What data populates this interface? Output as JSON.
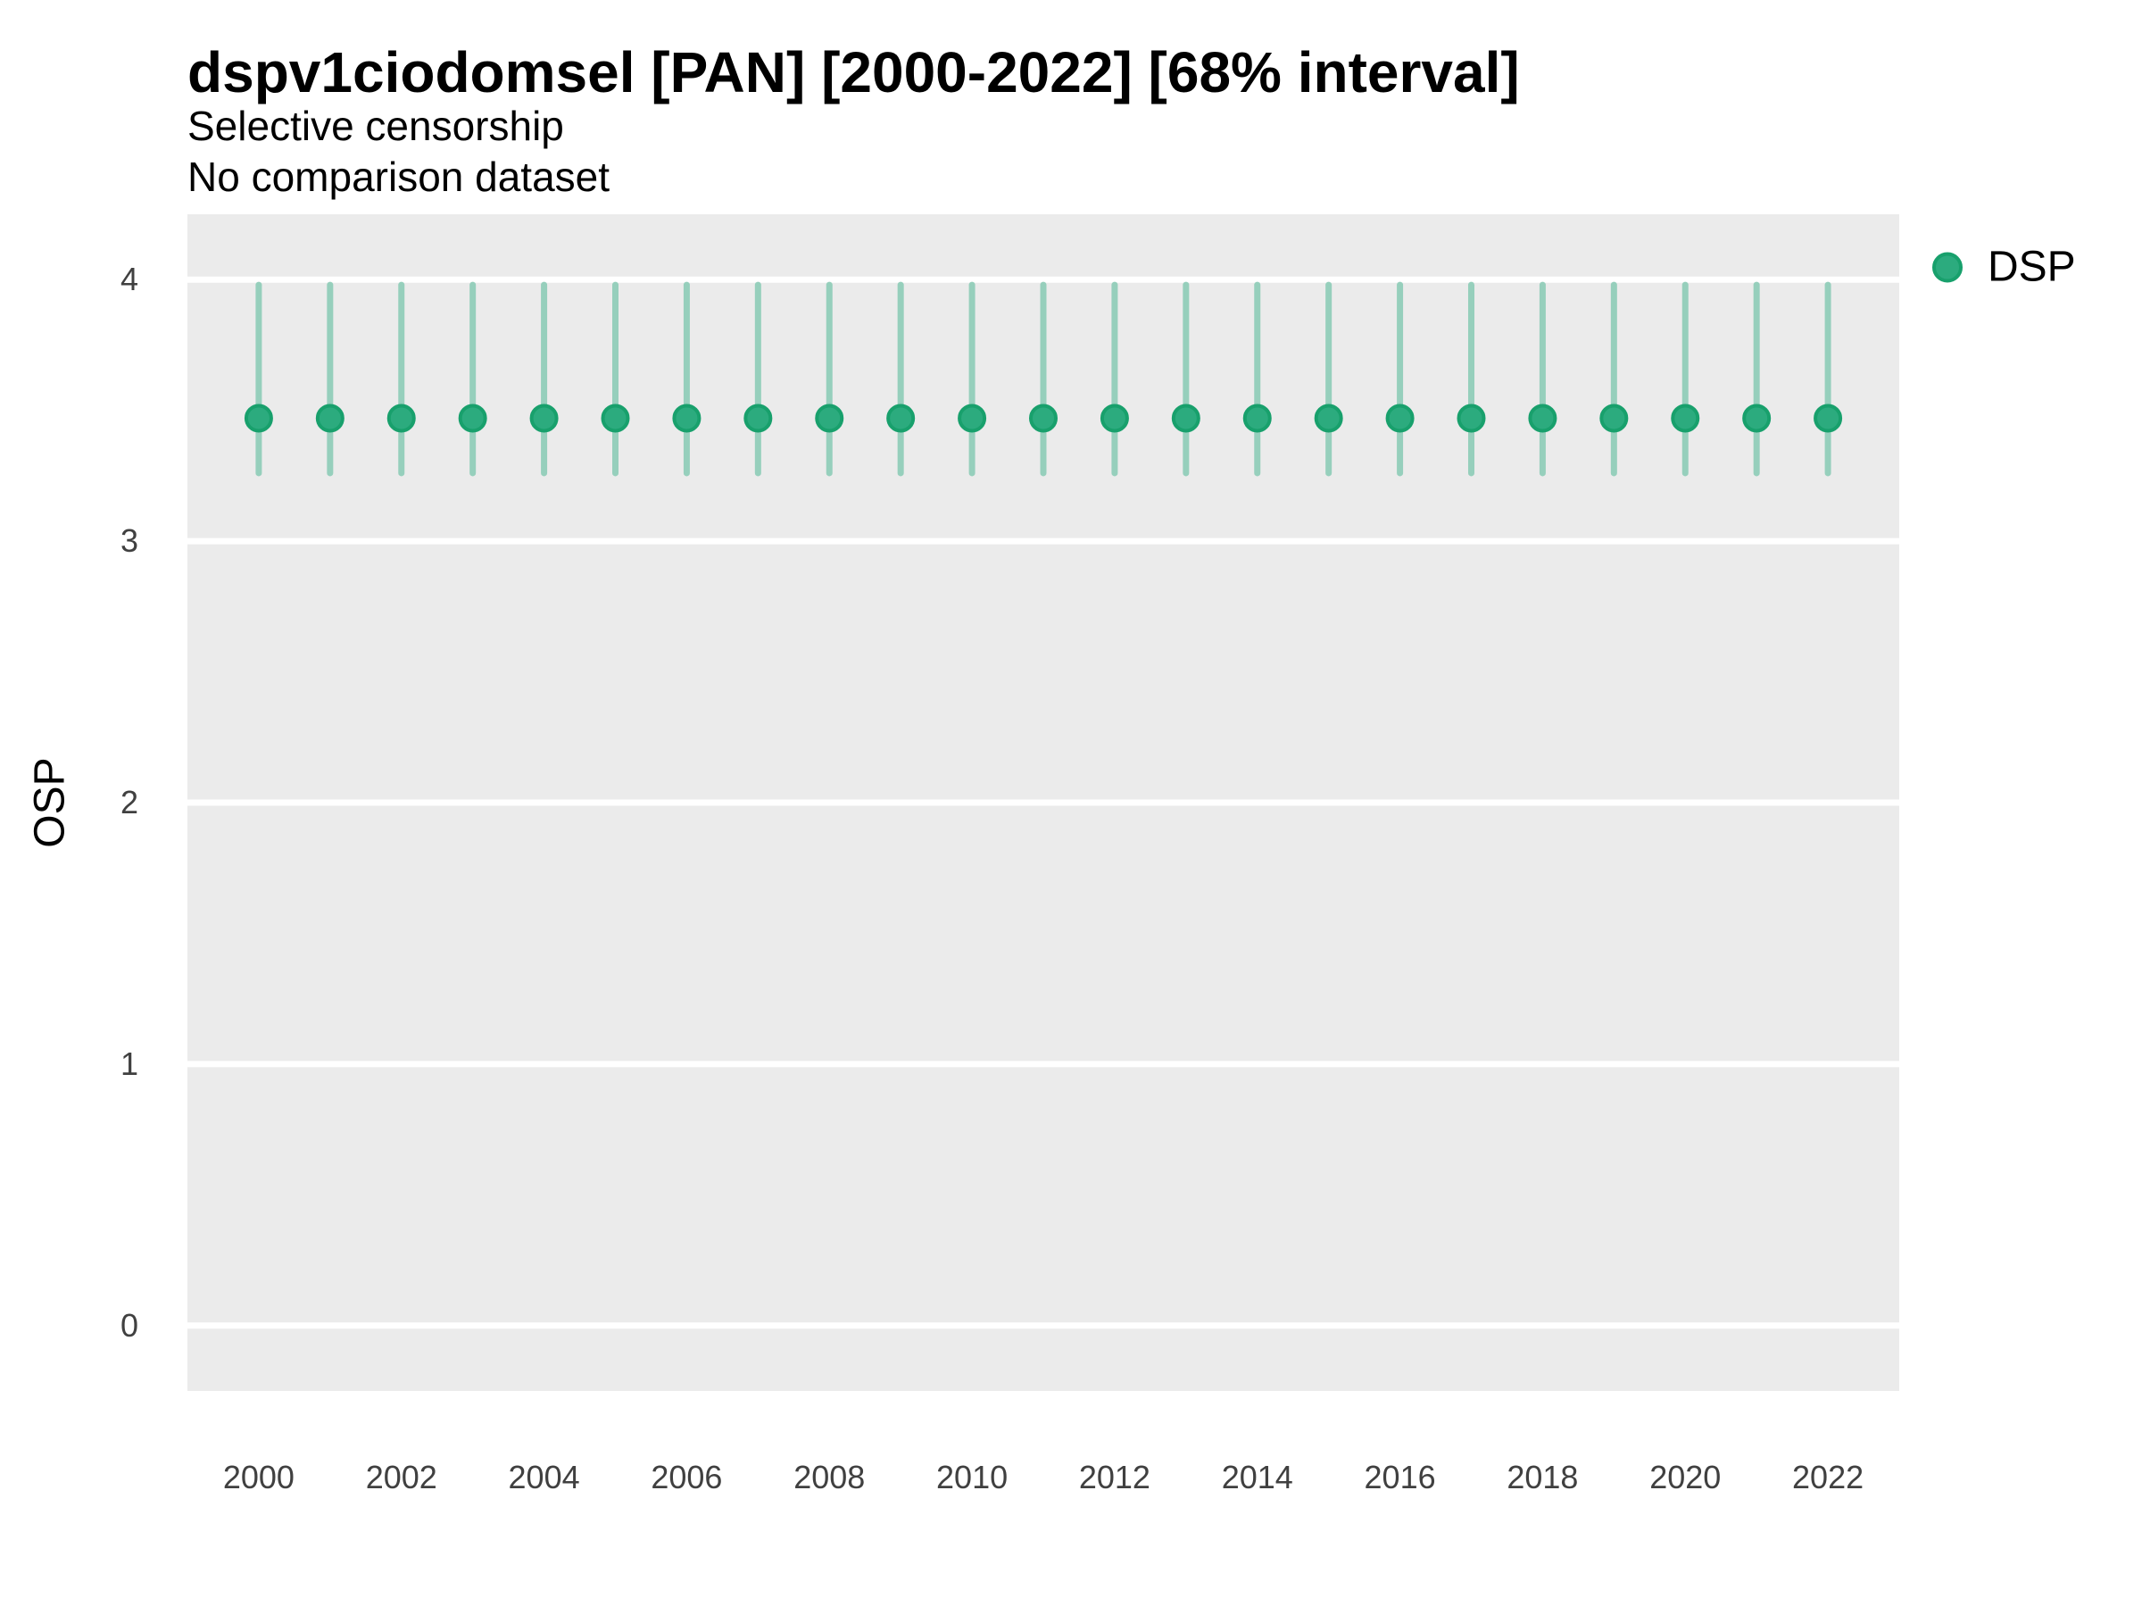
{
  "chart_data": {
    "type": "pointrange",
    "title": "dspv1ciodomsel [PAN] [2000-2022] [68% interval]",
    "subtitle": "Selective censorship",
    "subtitle2": "No comparison dataset",
    "ylabel": "OSP",
    "xlabel": "",
    "interval_level": "68%",
    "grid": "horizontal-major-white",
    "legend": {
      "position": "right",
      "entries": [
        {
          "label": "DSP",
          "color": "#2cab7e"
        }
      ]
    },
    "x": [
      2000,
      2001,
      2002,
      2003,
      2004,
      2005,
      2006,
      2007,
      2008,
      2009,
      2010,
      2011,
      2012,
      2013,
      2014,
      2015,
      2016,
      2017,
      2018,
      2019,
      2020,
      2021,
      2022
    ],
    "series": [
      {
        "name": "DSP",
        "mid": [
          3.47,
          3.47,
          3.47,
          3.47,
          3.47,
          3.47,
          3.47,
          3.47,
          3.47,
          3.47,
          3.47,
          3.47,
          3.47,
          3.47,
          3.47,
          3.47,
          3.47,
          3.47,
          3.47,
          3.47,
          3.47,
          3.47,
          3.47
        ],
        "lo": [
          3.26,
          3.26,
          3.26,
          3.26,
          3.26,
          3.26,
          3.26,
          3.26,
          3.26,
          3.26,
          3.26,
          3.26,
          3.26,
          3.26,
          3.26,
          3.26,
          3.26,
          3.26,
          3.26,
          3.26,
          3.26,
          3.26,
          3.26
        ],
        "hi": [
          3.98,
          3.98,
          3.98,
          3.98,
          3.98,
          3.98,
          3.98,
          3.98,
          3.98,
          3.98,
          3.98,
          3.98,
          3.98,
          3.98,
          3.98,
          3.98,
          3.98,
          3.98,
          3.98,
          3.98,
          3.98,
          3.98,
          3.98
        ]
      }
    ],
    "x_ticks": [
      2000,
      2002,
      2004,
      2006,
      2008,
      2010,
      2012,
      2014,
      2016,
      2018,
      2020,
      2022
    ],
    "y_ticks": [
      0,
      1,
      2,
      3,
      4
    ],
    "xlim": [
      1999,
      2023
    ],
    "ylim": [
      -0.25,
      4.25
    ],
    "panel_bg": "#ebebeb",
    "gridline_color": "#ffffff",
    "colors": {
      "point_fill": "#2cab7e",
      "point_stroke": "#18a06c",
      "interval_line": "#96cfbc"
    }
  }
}
